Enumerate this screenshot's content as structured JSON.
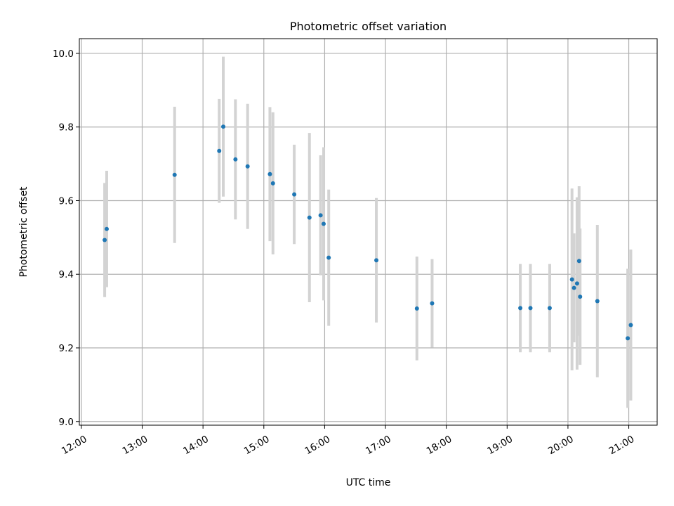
{
  "chart_data": {
    "type": "scatter",
    "title": "Photometric offset variation",
    "xlabel": "UTC time",
    "ylabel": "Photometric offset",
    "xlim": [
      "11:58",
      "21:28"
    ],
    "ylim": [
      8.99,
      10.04
    ],
    "grid": true,
    "legend": "none",
    "x_ticks": [
      "12:00",
      "13:00",
      "14:00",
      "15:00",
      "16:00",
      "17:00",
      "18:00",
      "19:00",
      "20:00",
      "21:00"
    ],
    "y_ticks": [
      "9.0",
      "9.2",
      "9.4",
      "9.6",
      "9.8",
      "10.0"
    ],
    "colors": {
      "point": "#1f77b4",
      "errorbar": "#d3d3d3",
      "grid": "#b0b0b0"
    },
    "series": [
      {
        "points": [
          {
            "x": "12:23",
            "y": 9.493,
            "err": 0.155
          },
          {
            "x": "12:25",
            "y": 9.523,
            "err": 0.158
          },
          {
            "x": "13:32",
            "y": 9.67,
            "err": 0.185
          },
          {
            "x": "14:16",
            "y": 9.735,
            "err": 0.141
          },
          {
            "x": "14:20",
            "y": 9.801,
            "err": 0.19
          },
          {
            "x": "14:32",
            "y": 9.712,
            "err": 0.163
          },
          {
            "x": "14:44",
            "y": 9.693,
            "err": 0.17
          },
          {
            "x": "15:06",
            "y": 9.672,
            "err": 0.182
          },
          {
            "x": "15:09",
            "y": 9.647,
            "err": 0.193
          },
          {
            "x": "15:30",
            "y": 9.617,
            "err": 0.135
          },
          {
            "x": "15:45",
            "y": 9.554,
            "err": 0.23
          },
          {
            "x": "15:56",
            "y": 9.56,
            "err": 0.163
          },
          {
            "x": "15:59",
            "y": 9.537,
            "err": 0.208
          },
          {
            "x": "16:04",
            "y": 9.445,
            "err": 0.185
          },
          {
            "x": "16:51",
            "y": 9.438,
            "err": 0.169
          },
          {
            "x": "17:31",
            "y": 9.307,
            "err": 0.141
          },
          {
            "x": "17:46",
            "y": 9.321,
            "err": 0.12
          },
          {
            "x": "19:13",
            "y": 9.308,
            "err": 0.12
          },
          {
            "x": "19:23",
            "y": 9.308,
            "err": 0.12
          },
          {
            "x": "19:42",
            "y": 9.308,
            "err": 0.12
          },
          {
            "x": "20:04",
            "y": 9.386,
            "err": 0.247
          },
          {
            "x": "20:06",
            "y": 9.363,
            "err": 0.148
          },
          {
            "x": "20:09",
            "y": 9.375,
            "err": 0.234
          },
          {
            "x": "20:11",
            "y": 9.436,
            "err": 0.203
          },
          {
            "x": "20:12",
            "y": 9.339,
            "err": 0.185
          },
          {
            "x": "20:29",
            "y": 9.327,
            "err": 0.207
          },
          {
            "x": "20:59",
            "y": 9.226,
            "err": 0.189
          },
          {
            "x": "21:02",
            "y": 9.262,
            "err": 0.205
          }
        ]
      }
    ]
  }
}
